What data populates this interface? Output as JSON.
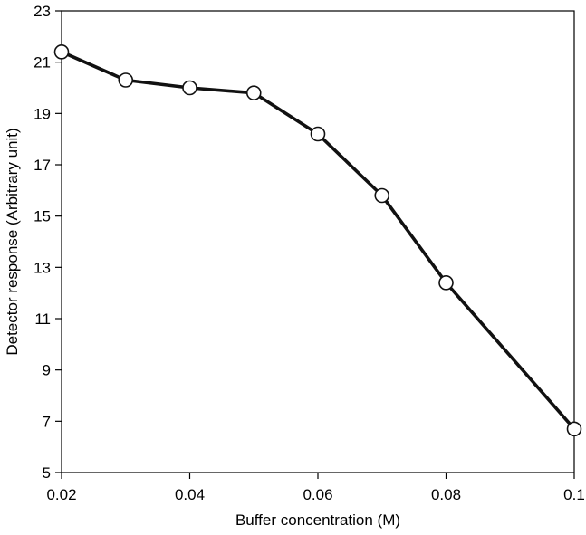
{
  "chart_data": {
    "type": "line",
    "title": "",
    "xlabel": "Buffer concentration (M)",
    "ylabel": "Detector response (Arbitrary unit)",
    "xlim": [
      0.02,
      0.1
    ],
    "ylim": [
      5,
      23
    ],
    "xticks": [
      0.02,
      0.04,
      0.06,
      0.08,
      0.1
    ],
    "xtick_labels": [
      "0.02",
      "0.04",
      "0.06",
      "0.08",
      "0.1"
    ],
    "yticks": [
      5,
      7,
      9,
      11,
      13,
      15,
      17,
      19,
      21,
      23
    ],
    "ytick_labels": [
      "5",
      "7",
      "9",
      "11",
      "13",
      "15",
      "17",
      "19",
      "21",
      "23"
    ],
    "grid": false,
    "legend": false,
    "series": [
      {
        "x": [
          0.02,
          0.03,
          0.04,
          0.05,
          0.06,
          0.07,
          0.08,
          0.1
        ],
        "y": [
          21.4,
          20.3,
          20.0,
          19.8,
          18.2,
          15.8,
          12.4,
          6.7
        ],
        "marker": "open-circle",
        "color": "#111111"
      }
    ]
  }
}
